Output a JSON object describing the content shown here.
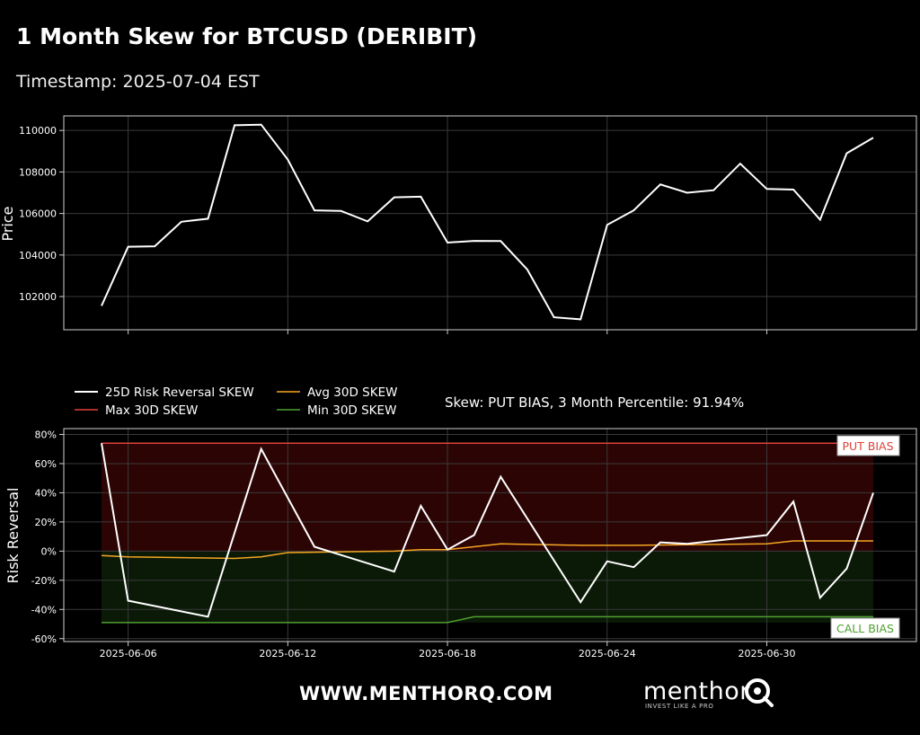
{
  "title": "1 Month Skew for BTCUSD (DERIBIT)",
  "subtitle": "Timestamp: 2025-07-04 EST",
  "footer": {
    "url": "WWW.MENTHORQ.COM",
    "brand": "menthor",
    "tagline": "INVEST LIKE A PRO"
  },
  "colors": {
    "rr": "#ffffff",
    "max": "#e0413a",
    "avg": "#f5a623",
    "min": "#4ea12f",
    "put_fill": "#2d0404",
    "call_fill": "#0b1a07"
  },
  "chart_data": [
    {
      "type": "line",
      "ylabel": "Price",
      "ylim": [
        100400,
        110700
      ],
      "yticks": [
        102000,
        104000,
        106000,
        108000,
        110000
      ],
      "grid": true,
      "x": [
        "2025-06-05",
        "2025-06-06",
        "2025-06-07",
        "2025-06-08",
        "2025-06-09",
        "2025-06-10",
        "2025-06-11",
        "2025-06-12",
        "2025-06-13",
        "2025-06-14",
        "2025-06-15",
        "2025-06-16",
        "2025-06-17",
        "2025-06-18",
        "2025-06-19",
        "2025-06-20",
        "2025-06-21",
        "2025-06-22",
        "2025-06-23",
        "2025-06-24",
        "2025-06-25",
        "2025-06-26",
        "2025-06-27",
        "2025-06-28",
        "2025-06-29",
        "2025-06-30",
        "2025-07-01",
        "2025-07-02",
        "2025-07-03",
        "2025-07-04"
      ],
      "series": [
        {
          "values": [
            101550,
            104400,
            104420,
            105600,
            105750,
            110250,
            110280,
            108600,
            106150,
            106120,
            105620,
            106780,
            106810,
            104600,
            104680,
            104670,
            103300,
            101000,
            100900,
            105450,
            106150,
            107400,
            107000,
            107120,
            108400,
            107180,
            107150,
            105700,
            108900,
            109650
          ]
        }
      ]
    },
    {
      "type": "line",
      "ylabel": "Risk Reversal",
      "ylim": [
        -62,
        84
      ],
      "yticks": [
        -60,
        -40,
        -20,
        0,
        20,
        40,
        60,
        80
      ],
      "ytick_labels": [
        "-60%",
        "-40%",
        "-20%",
        "0%",
        "20%",
        "40%",
        "60%",
        "80%"
      ],
      "grid": true,
      "xtick_labels": [
        "2025-06-06",
        "2025-06-12",
        "2025-06-18",
        "2025-06-24",
        "2025-06-30"
      ],
      "legend_placement": "top-left",
      "annotation": "Skew: PUT BIAS, 3 Month Percentile: 91.94%",
      "zone_labels": {
        "put": "PUT BIAS",
        "call": "CALL BIAS"
      },
      "series": [
        {
          "name": "25D Risk Reversal SKEW",
          "x": [
            "2025-06-05",
            "2025-06-06",
            "2025-06-09",
            "2025-06-11",
            "2025-06-13",
            "2025-06-16",
            "2025-06-17",
            "2025-06-18",
            "2025-06-19",
            "2025-06-20",
            "2025-06-23",
            "2025-06-24",
            "2025-06-25",
            "2025-06-26",
            "2025-06-27",
            "2025-06-30",
            "2025-07-01",
            "2025-07-02",
            "2025-07-03",
            "2025-07-04"
          ],
          "values": [
            74,
            -34,
            -45,
            70,
            3,
            -14,
            31,
            1,
            11,
            51,
            -35,
            -7,
            -11,
            6,
            5,
            11,
            34,
            -32,
            -12,
            40
          ]
        },
        {
          "name": "Max 30D SKEW",
          "x": [
            "2025-06-05",
            "2025-07-04"
          ],
          "values": [
            74,
            74
          ]
        },
        {
          "name": "Avg 30D SKEW",
          "x": [
            "2025-06-05",
            "2025-06-06",
            "2025-06-10",
            "2025-06-11",
            "2025-06-12",
            "2025-06-16",
            "2025-06-17",
            "2025-06-18",
            "2025-06-20",
            "2025-06-23",
            "2025-06-25",
            "2025-06-30",
            "2025-07-01",
            "2025-07-04"
          ],
          "values": [
            -3,
            -4,
            -5,
            -4,
            -1,
            0,
            1,
            1,
            5,
            4,
            4,
            5,
            7,
            7
          ]
        },
        {
          "name": "Min 30D SKEW",
          "x": [
            "2025-06-05",
            "2025-06-18",
            "2025-06-19",
            "2025-07-04"
          ],
          "values": [
            -49,
            -49,
            -45,
            -45
          ]
        }
      ]
    }
  ]
}
